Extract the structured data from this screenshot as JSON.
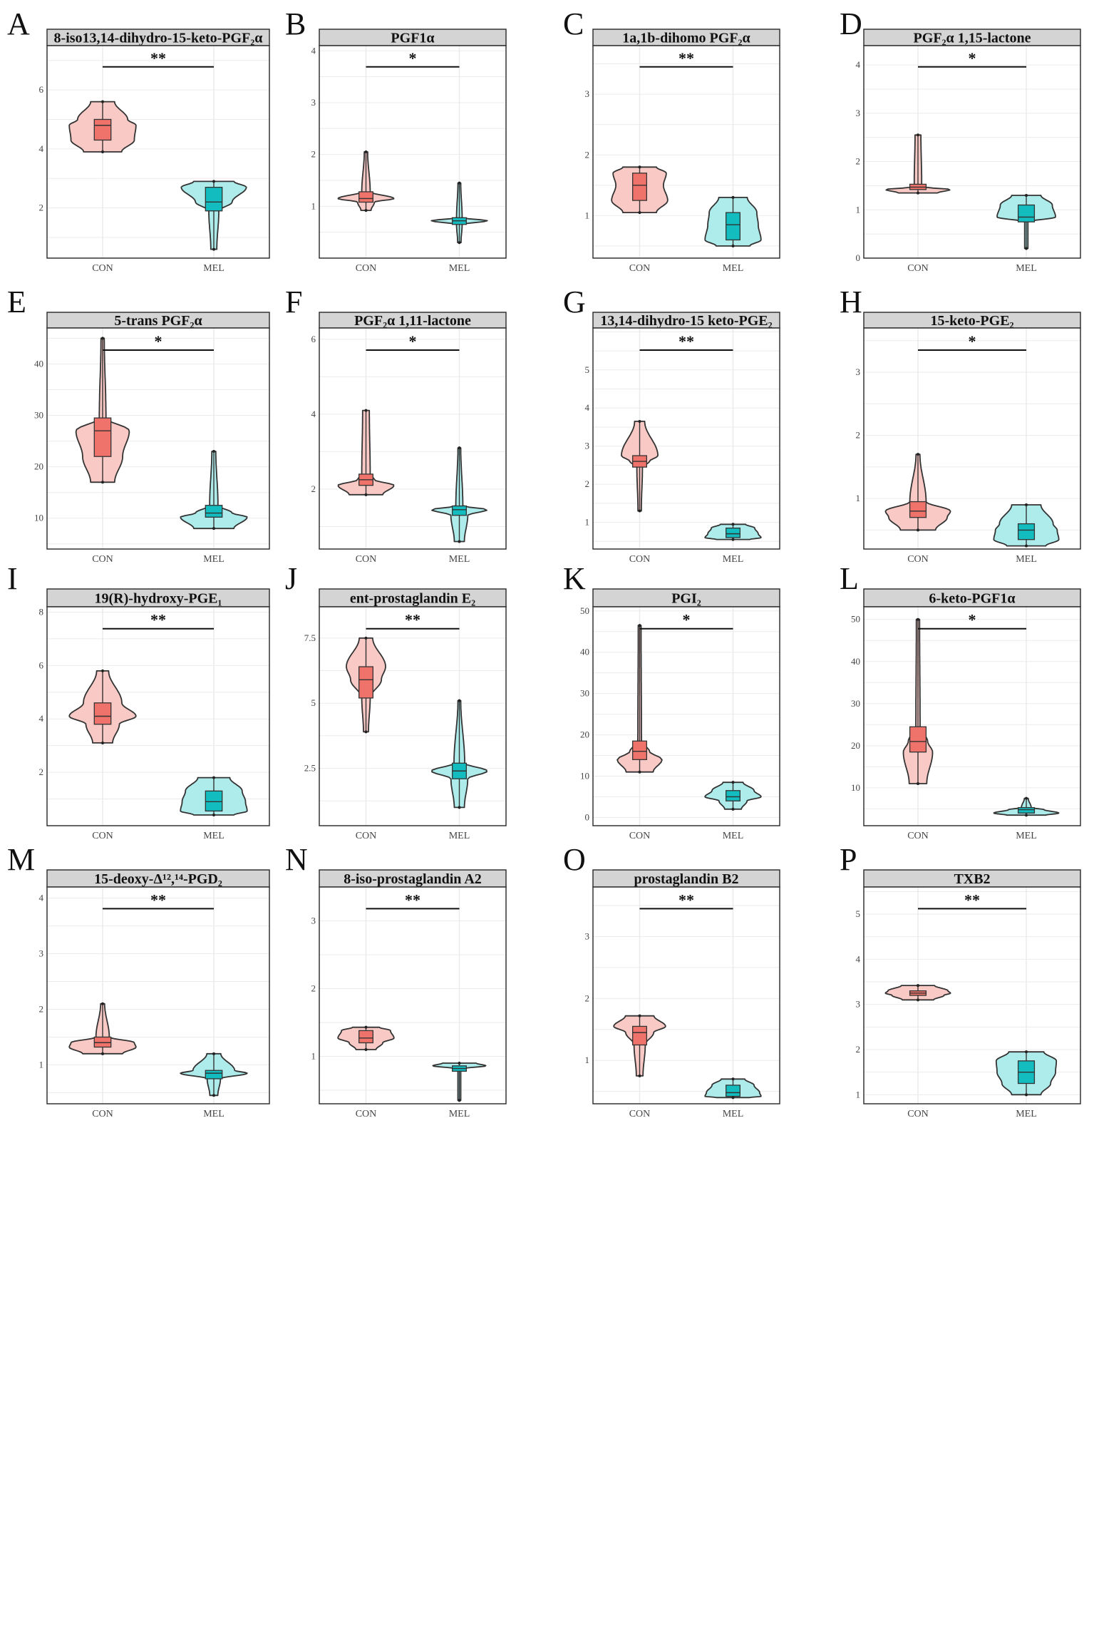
{
  "colors": {
    "con_fill": "#f8c9c5",
    "con_box": "#f0736b",
    "mel_fill": "#aeecec",
    "mel_box": "#13bcbf",
    "outline": "#333333",
    "grid": "#ebebeb",
    "strip": "#d4d4d4"
  },
  "chart_data": [
    {
      "type": "violin",
      "label": "A",
      "title": "8-iso13,14-dihydro-15-keto-PGF₂α",
      "categories": [
        "CON",
        "MEL"
      ],
      "ylim": [
        0.3,
        7.5
      ],
      "yticks": [
        2,
        4,
        6
      ],
      "significance": "**",
      "groups": [
        {
          "name": "CON",
          "min": 3.9,
          "q1": 4.3,
          "median": 4.8,
          "q3": 5.0,
          "max": 5.6,
          "shape": [
            0.95,
            1,
            0.9,
            0.6
          ]
        },
        {
          "name": "MEL",
          "min": 0.6,
          "q1": 1.9,
          "median": 2.2,
          "q3": 2.7,
          "max": 2.9,
          "shape": [
            0.15,
            0.55,
            0.95,
            1
          ]
        }
      ]
    },
    {
      "type": "violin",
      "label": "B",
      "title": "PGF1α",
      "categories": [
        "CON",
        "MEL"
      ],
      "ylim": [
        0.0,
        4.1
      ],
      "yticks": [
        1,
        2,
        3,
        4
      ],
      "significance": "*",
      "groups": [
        {
          "name": "CON",
          "min": 0.92,
          "q1": 1.08,
          "median": 1.15,
          "q3": 1.28,
          "max": 2.05,
          "shape": [
            0.3,
            1,
            0.2,
            0.1
          ]
        },
        {
          "name": "MEL",
          "min": 0.3,
          "q1": 0.65,
          "median": 0.72,
          "q3": 0.78,
          "max": 1.45,
          "shape": [
            0.1,
            1,
            0.15,
            0.05
          ]
        }
      ]
    },
    {
      "type": "violin",
      "label": "C",
      "title": "1a,1b-dihomo PGF₂α",
      "categories": [
        "CON",
        "MEL"
      ],
      "ylim": [
        0.3,
        3.8
      ],
      "yticks": [
        1,
        2,
        3
      ],
      "significance": "**",
      "groups": [
        {
          "name": "CON",
          "min": 1.05,
          "q1": 1.25,
          "median": 1.5,
          "q3": 1.7,
          "max": 1.8,
          "shape": [
            1,
            0.85,
            0.9,
            1
          ]
        },
        {
          "name": "MEL",
          "min": 0.5,
          "q1": 0.6,
          "median": 0.85,
          "q3": 1.05,
          "max": 1.3,
          "shape": [
            1,
            0.9,
            0.85,
            0.85
          ]
        }
      ]
    },
    {
      "type": "violin",
      "label": "D",
      "title": "PGF₂α 1,15-lactone",
      "categories": [
        "CON",
        "MEL"
      ],
      "ylim": [
        0.0,
        4.4
      ],
      "yticks": [
        0,
        1,
        2,
        3,
        4
      ],
      "significance": "*",
      "groups": [
        {
          "name": "CON",
          "min": 1.35,
          "q1": 1.42,
          "median": 1.47,
          "q3": 1.53,
          "max": 2.55,
          "shape": [
            1,
            0.2,
            0.08,
            0.15
          ]
        },
        {
          "name": "MEL",
          "min": 0.2,
          "q1": 0.75,
          "median": 0.85,
          "q3": 1.1,
          "max": 1.3,
          "shape": [
            0.05,
            0.9,
            0.85,
            0.75
          ]
        }
      ]
    },
    {
      "type": "violin",
      "label": "E",
      "title": "5-trans PGF₂α",
      "categories": [
        "CON",
        "MEL"
      ],
      "ylim": [
        4.0,
        47.0
      ],
      "yticks": [
        10,
        20,
        30,
        40
      ],
      "significance": "*",
      "groups": [
        {
          "name": "CON",
          "min": 17.0,
          "q1": 22.0,
          "median": 27.0,
          "q3": 29.5,
          "max": 45.0,
          "shape": [
            0.6,
            0.8,
            0.15,
            0.05
          ]
        },
        {
          "name": "MEL",
          "min": 8.0,
          "q1": 10.2,
          "median": 11.0,
          "q3": 12.5,
          "max": 23.0,
          "shape": [
            1,
            0.55,
            0.15,
            0.1
          ]
        }
      ]
    },
    {
      "type": "violin",
      "label": "F",
      "title": "PGF₂α 1,11-lactone",
      "categories": [
        "CON",
        "MEL"
      ],
      "ylim": [
        0.4,
        6.3
      ],
      "yticks": [
        2,
        4,
        6
      ],
      "significance": "*",
      "groups": [
        {
          "name": "CON",
          "min": 1.85,
          "q1": 2.1,
          "median": 2.25,
          "q3": 2.4,
          "max": 4.1,
          "shape": [
            1,
            0.3,
            0.1,
            0.2
          ]
        },
        {
          "name": "MEL",
          "min": 0.6,
          "q1": 1.3,
          "median": 1.45,
          "q3": 1.55,
          "max": 3.1,
          "shape": [
            0.3,
            1,
            0.2,
            0.05
          ]
        }
      ]
    },
    {
      "type": "violin",
      "label": "G",
      "title": "13,14-dihydro-15 keto-PGE₂",
      "categories": [
        "CON",
        "MEL"
      ],
      "ylim": [
        0.3,
        6.1
      ],
      "yticks": [
        1,
        2,
        3,
        4,
        5
      ],
      "significance": "**",
      "groups": [
        {
          "name": "CON",
          "min": 1.3,
          "q1": 2.45,
          "median": 2.6,
          "q3": 2.75,
          "max": 3.65,
          "shape": [
            0.1,
            0.35,
            1,
            0.3
          ]
        },
        {
          "name": "MEL",
          "min": 0.55,
          "q1": 0.6,
          "median": 0.7,
          "q3": 0.85,
          "max": 0.95,
          "shape": [
            1,
            0.9,
            0.8,
            0.75
          ]
        }
      ]
    },
    {
      "type": "violin",
      "label": "H",
      "title": "15-keto-PGE₂",
      "categories": [
        "CON",
        "MEL"
      ],
      "ylim": [
        0.2,
        3.7
      ],
      "yticks": [
        1,
        2,
        3
      ],
      "significance": "*",
      "groups": [
        {
          "name": "CON",
          "min": 0.5,
          "q1": 0.7,
          "median": 0.8,
          "q3": 0.95,
          "max": 1.7,
          "shape": [
            0.9,
            1,
            0.4,
            0.1
          ]
        },
        {
          "name": "MEL",
          "min": 0.25,
          "q1": 0.35,
          "median": 0.5,
          "q3": 0.6,
          "max": 0.9,
          "shape": [
            1,
            0.95,
            0.9,
            0.75
          ]
        }
      ]
    },
    {
      "type": "violin",
      "label": "I",
      "title": "19(R)-hydroxy-PGE₁",
      "categories": [
        "CON",
        "MEL"
      ],
      "ylim": [
        0.0,
        8.2
      ],
      "yticks": [
        2,
        4,
        6,
        8
      ],
      "significance": "**",
      "groups": [
        {
          "name": "CON",
          "min": 3.1,
          "q1": 3.8,
          "median": 4.1,
          "q3": 4.6,
          "max": 5.8,
          "shape": [
            0.5,
            1,
            0.85,
            0.3
          ]
        },
        {
          "name": "MEL",
          "min": 0.4,
          "q1": 0.55,
          "median": 0.9,
          "q3": 1.3,
          "max": 1.8,
          "shape": [
            1,
            0.95,
            0.9,
            0.8
          ]
        }
      ]
    },
    {
      "type": "violin",
      "label": "J",
      "title": "ent-prostaglandin E₂",
      "categories": [
        "CON",
        "MEL"
      ],
      "ylim": [
        0.3,
        8.7
      ],
      "yticks": [
        2.5,
        5.0,
        7.5
      ],
      "significance": "**",
      "groups": [
        {
          "name": "CON",
          "min": 3.9,
          "q1": 5.2,
          "median": 5.9,
          "q3": 6.4,
          "max": 7.5,
          "shape": [
            0.15,
            0.55,
            1,
            0.4
          ]
        },
        {
          "name": "MEL",
          "min": 1.0,
          "q1": 2.1,
          "median": 2.4,
          "q3": 2.7,
          "max": 5.1,
          "shape": [
            0.3,
            1,
            0.3,
            0.08
          ]
        }
      ]
    },
    {
      "type": "violin",
      "label": "K",
      "title": "PGI₂",
      "categories": [
        "CON",
        "MEL"
      ],
      "ylim": [
        -2.0,
        51.0
      ],
      "yticks": [
        0,
        10,
        20,
        30,
        40,
        50
      ],
      "significance": "*",
      "groups": [
        {
          "name": "CON",
          "min": 11.0,
          "q1": 14.0,
          "median": 16.0,
          "q3": 18.5,
          "max": 46.5,
          "shape": [
            0.8,
            0.35,
            0.08,
            0.05
          ]
        },
        {
          "name": "MEL",
          "min": 2.0,
          "q1": 4.0,
          "median": 5.0,
          "q3": 6.5,
          "max": 8.5,
          "shape": [
            0.5,
            1,
            0.9,
            0.6
          ]
        }
      ]
    },
    {
      "type": "violin",
      "label": "L",
      "title": "6-keto-PGF1α",
      "categories": [
        "CON",
        "MEL"
      ],
      "ylim": [
        1.0,
        53.0
      ],
      "yticks": [
        10,
        20,
        30,
        40,
        50
      ],
      "significance": "*",
      "groups": [
        {
          "name": "CON",
          "min": 11.0,
          "q1": 18.5,
          "median": 21.0,
          "q3": 24.5,
          "max": 50.0,
          "shape": [
            0.45,
            0.3,
            0.08,
            0.05
          ]
        },
        {
          "name": "MEL",
          "min": 3.5,
          "q1": 4.0,
          "median": 4.8,
          "q3": 5.3,
          "max": 7.5,
          "shape": [
            1,
            0.55,
            0.2,
            0.1
          ]
        }
      ]
    },
    {
      "type": "violin",
      "label": "M",
      "title": "15-deoxy-Δ¹²,¹⁴-PGD₂",
      "categories": [
        "CON",
        "MEL"
      ],
      "ylim": [
        0.3,
        4.2
      ],
      "yticks": [
        1,
        2,
        3,
        4
      ],
      "significance": "**",
      "groups": [
        {
          "name": "CON",
          "min": 1.2,
          "q1": 1.32,
          "median": 1.4,
          "q3": 1.5,
          "max": 2.1,
          "shape": [
            1,
            0.95,
            0.3,
            0.1
          ]
        },
        {
          "name": "MEL",
          "min": 0.45,
          "q1": 0.75,
          "median": 0.85,
          "q3": 0.9,
          "max": 1.2,
          "shape": [
            0.2,
            1,
            0.9,
            0.35
          ]
        }
      ]
    },
    {
      "type": "violin",
      "label": "N",
      "title": "8-iso-prostaglandin A2",
      "categories": [
        "CON",
        "MEL"
      ],
      "ylim": [
        0.3,
        3.5
      ],
      "yticks": [
        1,
        2,
        3
      ],
      "significance": "**",
      "groups": [
        {
          "name": "CON",
          "min": 1.1,
          "q1": 1.2,
          "median": 1.27,
          "q3": 1.38,
          "max": 1.43,
          "shape": [
            0.6,
            1,
            0.95,
            0.8
          ]
        },
        {
          "name": "MEL",
          "min": 0.35,
          "q1": 0.78,
          "median": 0.82,
          "q3": 0.86,
          "max": 0.9,
          "shape": [
            0.05,
            0.15,
            0.9,
            1
          ]
        }
      ]
    },
    {
      "type": "violin",
      "label": "O",
      "title": "prostaglandin B2",
      "categories": [
        "CON",
        "MEL"
      ],
      "ylim": [
        0.3,
        3.8
      ],
      "yticks": [
        1,
        2,
        3
      ],
      "significance": "**",
      "groups": [
        {
          "name": "CON",
          "min": 0.75,
          "q1": 1.25,
          "median": 1.45,
          "q3": 1.55,
          "max": 1.72,
          "shape": [
            0.2,
            0.5,
            1,
            0.85
          ]
        },
        {
          "name": "MEL",
          "min": 0.4,
          "q1": 0.42,
          "median": 0.48,
          "q3": 0.6,
          "max": 0.7,
          "shape": [
            1,
            0.95,
            0.8,
            0.7
          ]
        }
      ]
    },
    {
      "type": "violin",
      "label": "P",
      "title": "TXB2",
      "categories": [
        "CON",
        "MEL"
      ],
      "ylim": [
        0.8,
        5.6
      ],
      "yticks": [
        1,
        2,
        3,
        4,
        5
      ],
      "significance": "**",
      "groups": [
        {
          "name": "CON",
          "min": 3.1,
          "q1": 3.2,
          "median": 3.25,
          "q3": 3.3,
          "max": 3.42,
          "shape": [
            0.8,
            1,
            1,
            0.85
          ]
        },
        {
          "name": "MEL",
          "min": 1.0,
          "q1": 1.25,
          "median": 1.5,
          "q3": 1.75,
          "max": 1.95,
          "shape": [
            0.75,
            0.9,
            0.95,
            0.9
          ]
        }
      ]
    }
  ]
}
